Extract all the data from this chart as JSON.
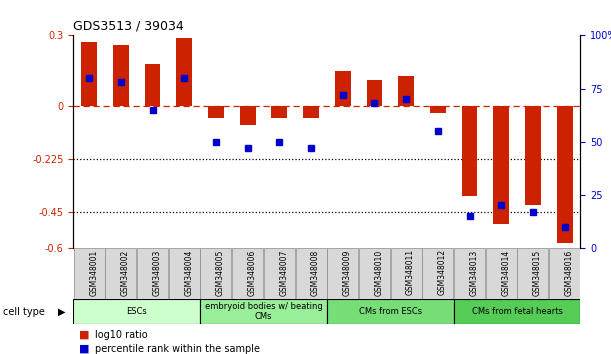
{
  "title": "GDS3513 / 39034",
  "samples": [
    "GSM348001",
    "GSM348002",
    "GSM348003",
    "GSM348004",
    "GSM348005",
    "GSM348006",
    "GSM348007",
    "GSM348008",
    "GSM348009",
    "GSM348010",
    "GSM348011",
    "GSM348012",
    "GSM348013",
    "GSM348014",
    "GSM348015",
    "GSM348016"
  ],
  "log10_ratio": [
    0.27,
    0.26,
    0.18,
    0.29,
    -0.05,
    -0.08,
    -0.05,
    -0.05,
    0.15,
    0.11,
    0.13,
    -0.03,
    -0.38,
    -0.5,
    -0.42,
    -0.58
  ],
  "percentile_rank": [
    80,
    78,
    65,
    80,
    50,
    47,
    50,
    47,
    72,
    68,
    70,
    55,
    15,
    20,
    17,
    10
  ],
  "cell_types": [
    {
      "label": "ESCs",
      "start": 0,
      "end": 4,
      "color": "#ccffcc"
    },
    {
      "label": "embryoid bodies w/ beating\nCMs",
      "start": 4,
      "end": 8,
      "color": "#99ee99"
    },
    {
      "label": "CMs from ESCs",
      "start": 8,
      "end": 12,
      "color": "#77dd77"
    },
    {
      "label": "CMs from fetal hearts",
      "start": 12,
      "end": 16,
      "color": "#55cc55"
    }
  ],
  "ylim": [
    -0.6,
    0.3
  ],
  "yticks_left": [
    0.3,
    0.0,
    -0.225,
    -0.45,
    -0.6
  ],
  "ytick_labels_left": [
    "0.3",
    "0",
    "-0.225",
    "-0.45",
    "-0.6"
  ],
  "right_ytick_pcts": [
    100,
    75,
    50,
    25,
    0
  ],
  "right_ytick_labels": [
    "100%",
    "75",
    "50",
    "25",
    "0"
  ],
  "hlines_dotted": [
    -0.225,
    -0.45
  ],
  "bar_color_red": "#cc2200",
  "bar_color_blue": "#0000cc",
  "dashed_line_y": 0.0
}
